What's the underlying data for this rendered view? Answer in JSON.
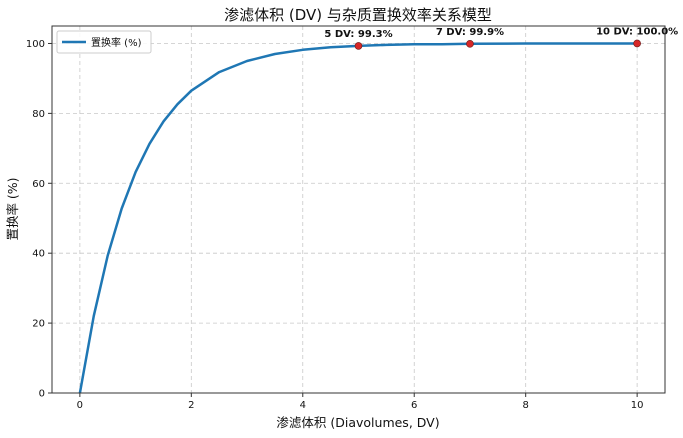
{
  "chart_data": {
    "type": "line",
    "title": "渗滤体积 (DV) 与杂质置换效率关系模型",
    "xlabel": "渗滤体积 (Diavolumes, DV)",
    "ylabel": "置换率 (%)",
    "xlim": [
      -0.5,
      10.5
    ],
    "ylim": [
      0,
      105
    ],
    "x_ticks": [
      "0",
      "2",
      "4",
      "6",
      "8",
      "10"
    ],
    "y_ticks": [
      "0",
      "20",
      "40",
      "60",
      "80",
      "100"
    ],
    "grid": true,
    "legend_position": "top-left",
    "series": [
      {
        "name": "置换率 (%)",
        "color": "#1f77b4",
        "x": [
          0,
          0.25,
          0.5,
          0.75,
          1,
          1.25,
          1.5,
          1.75,
          2,
          2.5,
          3,
          3.5,
          4,
          4.5,
          5,
          5.5,
          6,
          6.5,
          7,
          8,
          9,
          10
        ],
        "y": [
          0,
          22.1,
          39.3,
          52.8,
          63.2,
          71.3,
          77.7,
          82.6,
          86.5,
          91.8,
          95.0,
          97.0,
          98.2,
          98.9,
          99.3,
          99.6,
          99.8,
          99.8,
          99.9,
          100.0,
          100.0,
          100.0
        ]
      }
    ],
    "highlight_points": {
      "color": "#d62728",
      "x": [
        5,
        7,
        10
      ],
      "y": [
        99.3,
        99.9,
        100.0
      ]
    },
    "annotations": [
      {
        "x": 5,
        "y": 99.3,
        "text": "5 DV: 99.3%"
      },
      {
        "x": 7,
        "y": 99.9,
        "text": "7 DV: 99.9%"
      },
      {
        "x": 10,
        "y": 100.0,
        "text": "10 DV: 100.0%"
      }
    ]
  }
}
